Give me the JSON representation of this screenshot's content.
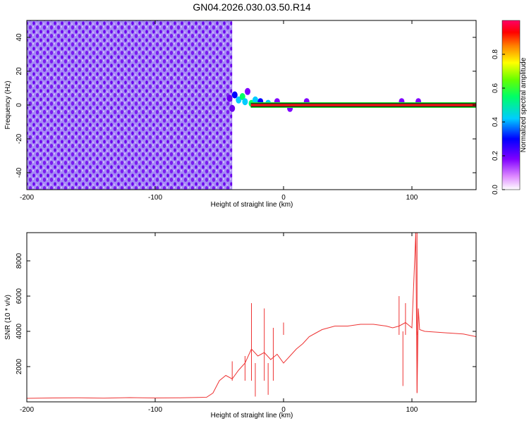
{
  "title": "GN04.2026.030.03.50.R14",
  "colorbar": {
    "label": "Normalized spectral amplitude",
    "ticks": [
      "0.0",
      "0.2",
      "0.4",
      "0.6",
      "0.8"
    ],
    "range": [
      0,
      1
    ],
    "colors": [
      "#ffffff",
      "#cc66ff",
      "#8000ff",
      "#0000ff",
      "#00ccff",
      "#00ff66",
      "#66ff00",
      "#ffff00",
      "#ff8000",
      "#ff0000",
      "#ff0066"
    ]
  },
  "chart_data": [
    {
      "type": "heatmap",
      "xlabel": "Height of straight line (km)",
      "ylabel": "Frequency (Hz)",
      "xlim": [
        -200,
        150
      ],
      "ylim": [
        -50,
        50
      ],
      "xticks": [
        "-200",
        "-100",
        "0",
        "100"
      ],
      "yticks": [
        "-40",
        "-20",
        "0",
        "20",
        "40"
      ],
      "regions": [
        {
          "x_range": [
            -200,
            -40
          ],
          "y_range": [
            -50,
            50
          ],
          "amplitude": 0.15,
          "note_visible": false
        },
        {
          "x_range": [
            -45,
            -20
          ],
          "y_range": [
            -5,
            12
          ],
          "amplitude": 0.3
        },
        {
          "x_range": [
            -20,
            150
          ],
          "y_range": [
            -1,
            1
          ],
          "amplitude": 0.95
        }
      ]
    },
    {
      "type": "line",
      "xlabel": "Height of straight line (km)",
      "ylabel": "SNR (10 * v/v)",
      "xlim": [
        -200,
        150
      ],
      "ylim": [
        0,
        9600
      ],
      "xticks": [
        "-200",
        "-100",
        "0",
        "100"
      ],
      "yticks": [
        "2000",
        "4000",
        "6000",
        "8000"
      ],
      "line_color": "#ee3333",
      "series": [
        {
          "x": [
            -200,
            -180,
            -160,
            -140,
            -120,
            -100,
            -80,
            -60,
            -55,
            -50,
            -45,
            -40,
            -35,
            -30,
            -25,
            -20,
            -15,
            -10,
            -5,
            0,
            5,
            10,
            15,
            20,
            25,
            30,
            35,
            40,
            50,
            60,
            70,
            80,
            85,
            90,
            95,
            100,
            103,
            104,
            105,
            106,
            110,
            120,
            130,
            140,
            150
          ],
          "y": [
            200,
            220,
            230,
            210,
            240,
            220,
            230,
            260,
            500,
            1200,
            1500,
            1300,
            1800,
            2200,
            3000,
            2600,
            2800,
            2400,
            2700,
            2200,
            2600,
            3000,
            3300,
            3700,
            3900,
            4100,
            4200,
            4300,
            4300,
            4400,
            4400,
            4300,
            4200,
            4300,
            4500,
            4200,
            9600,
            500,
            5300,
            4100,
            4000,
            3950,
            3900,
            3850,
            3700
          ]
        }
      ],
      "spikes": [
        {
          "x": -40,
          "y": 2300
        },
        {
          "x": -30,
          "y": 2600
        },
        {
          "x": -25,
          "y": 5600
        },
        {
          "x": -15,
          "y": 5300
        },
        {
          "x": -8,
          "y": 4200
        },
        {
          "x": 0,
          "y": 4500
        },
        {
          "x": 90,
          "y": 6000
        },
        {
          "x": 95,
          "y": 5600
        },
        {
          "x": 104,
          "y": 9600
        }
      ],
      "dips": [
        {
          "x": -22,
          "y": 300
        },
        {
          "x": -12,
          "y": 400
        },
        {
          "x": 93,
          "y": 900
        },
        {
          "x": 104,
          "y": 500
        }
      ]
    }
  ]
}
